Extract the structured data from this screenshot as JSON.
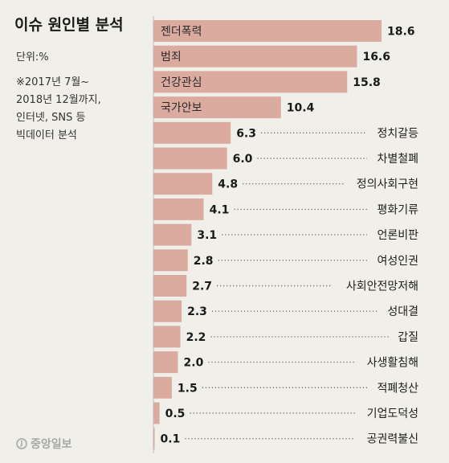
{
  "header": {
    "title": "이슈 원인별 분석",
    "unit": "단위:%",
    "note": "※2017년 7월~\n2018년 12월까지,\n인터넷, SNS 등\n빅데이터 분석",
    "source": "중앙일보"
  },
  "colors": {
    "bar": "#dcaba0",
    "background": "#f1efea",
    "axis": "#bdbdbd",
    "dots": "#555555"
  },
  "chart_data": {
    "type": "bar",
    "orientation": "horizontal",
    "title": "이슈 원인별 분석",
    "unit": "%",
    "categories": [
      "젠더폭력",
      "범죄",
      "건강관심",
      "국가안보",
      "정치갈등",
      "차별철폐",
      "정의사회구현",
      "평화기류",
      "언론비판",
      "여성인권",
      "사회안전망저해",
      "성대결",
      "갑질",
      "사생활침해",
      "적폐청산",
      "기업도덕성",
      "공권력불신"
    ],
    "values": [
      18.6,
      16.6,
      15.8,
      10.4,
      6.3,
      6.0,
      4.8,
      4.1,
      3.1,
      2.8,
      2.7,
      2.3,
      2.2,
      2.0,
      1.5,
      0.5,
      0.1
    ],
    "labels_inside_bar": [
      "젠더폭력",
      "범죄",
      "건강관심",
      "국가안보"
    ],
    "xlim": [
      0,
      18.6
    ]
  }
}
